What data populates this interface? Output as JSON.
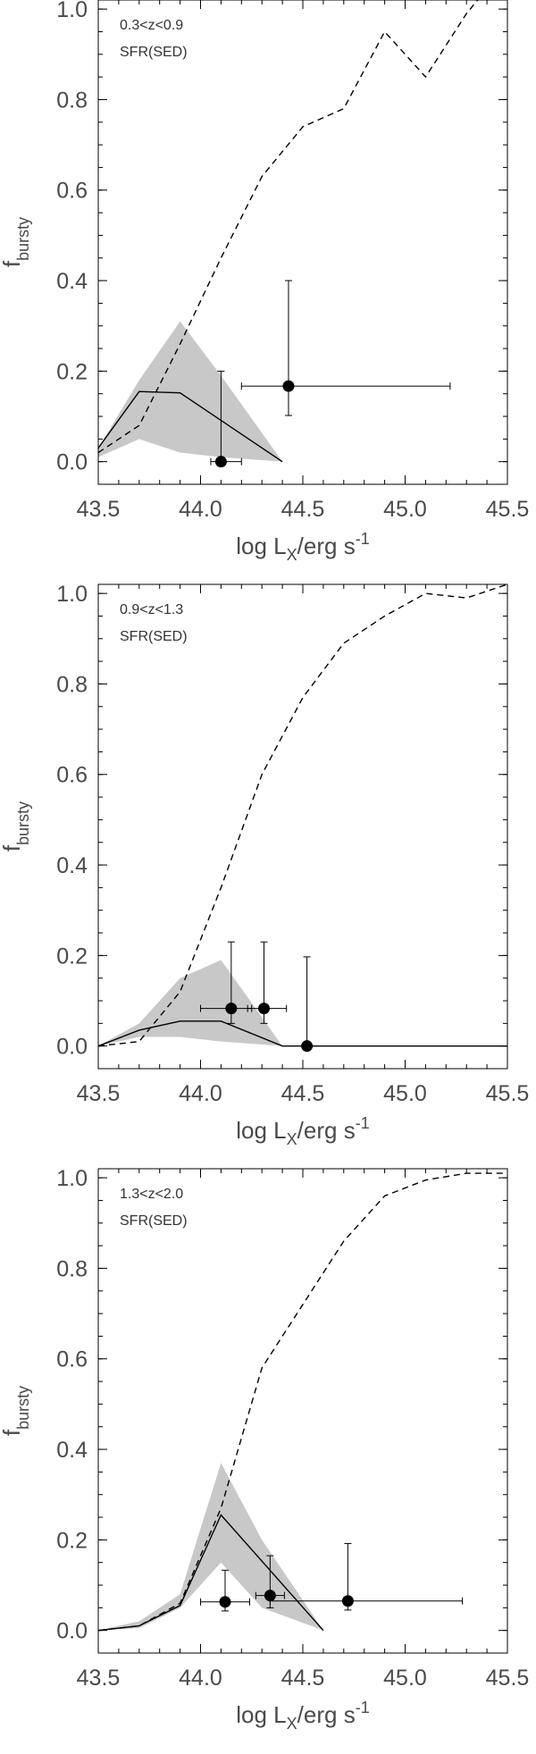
{
  "chart_data": [
    {
      "type": "line",
      "panel": "top",
      "annotations": [
        "0.3<z<0.9",
        "SFR(SED)"
      ],
      "xlabel": {
        "base": "log L",
        "sub": "X",
        "mid": "/erg s",
        "sup": "-1"
      },
      "ylabel": {
        "base": "f",
        "sub": "bursty"
      },
      "xlim": [
        43.5,
        45.5
      ],
      "ylim": [
        -0.05,
        1.02
      ],
      "xticks": [
        43.5,
        44.0,
        44.5,
        45.0,
        45.5
      ],
      "xtick_labels": [
        "43.5",
        "44.0",
        "44.5",
        "45.0",
        "45.5"
      ],
      "yticks": [
        0.0,
        0.2,
        0.4,
        0.6,
        0.8,
        1.0
      ],
      "ytick_labels": [
        "0.0",
        "0.2",
        "0.4",
        "0.6",
        "0.8",
        "1.0"
      ],
      "band": {
        "x": [
          43.5,
          43.7,
          43.9,
          44.1,
          44.4
        ],
        "upper": [
          0.03,
          0.18,
          0.31,
          0.19,
          0.0
        ],
        "lower": [
          0.01,
          0.05,
          0.02,
          0.01,
          0.0
        ]
      },
      "model_line": {
        "x": [
          43.5,
          43.7,
          43.9,
          44.4
        ],
        "y": [
          0.03,
          0.155,
          0.152,
          0.0
        ]
      },
      "dashed_line": {
        "x": [
          43.5,
          43.7,
          43.9,
          44.1,
          44.3,
          44.5,
          44.7,
          44.9,
          45.1,
          45.3,
          45.5
        ],
        "y": [
          0.02,
          0.08,
          0.26,
          0.45,
          0.63,
          0.74,
          0.78,
          0.95,
          0.85,
          0.99,
          1.1
        ]
      },
      "points": [
        {
          "x": 44.1,
          "y": 0.0,
          "xerr_lo": 0.05,
          "xerr_hi": 0.1,
          "yerr_lo": 0.0,
          "yerr_hi": 0.2
        },
        {
          "x": 44.43,
          "y": 0.167,
          "xerr_lo": 0.23,
          "xerr_hi": 0.79,
          "yerr_lo": 0.065,
          "yerr_hi": 0.233
        }
      ]
    },
    {
      "type": "line",
      "panel": "middle",
      "annotations": [
        "0.9<z<1.3",
        "SFR(SED)"
      ],
      "xlabel": {
        "base": "log L",
        "sub": "X",
        "mid": "/erg s",
        "sup": "-1"
      },
      "ylabel": {
        "base": "f",
        "sub": "bursty"
      },
      "xlim": [
        43.5,
        45.5
      ],
      "ylim": [
        -0.05,
        1.02
      ],
      "xticks": [
        43.5,
        44.0,
        44.5,
        45.0,
        45.5
      ],
      "xtick_labels": [
        "43.5",
        "44.0",
        "44.5",
        "45.0",
        "45.5"
      ],
      "yticks": [
        0.0,
        0.2,
        0.4,
        0.6,
        0.8,
        1.0
      ],
      "ytick_labels": [
        "0.0",
        "0.2",
        "0.4",
        "0.6",
        "0.8",
        "1.0"
      ],
      "band": {
        "x": [
          43.5,
          43.7,
          43.9,
          44.1,
          44.4
        ],
        "upper": [
          0.0,
          0.05,
          0.15,
          0.19,
          0.0
        ],
        "lower": [
          0.0,
          0.02,
          0.02,
          0.01,
          0.0
        ]
      },
      "model_line": {
        "x": [
          43.5,
          43.7,
          43.9,
          44.1,
          44.4,
          45.5
        ],
        "y": [
          0.0,
          0.035,
          0.055,
          0.055,
          0.0,
          0.0
        ]
      },
      "dashed_line": {
        "x": [
          43.5,
          43.7,
          43.9,
          44.1,
          44.3,
          44.5,
          44.7,
          44.9,
          45.1,
          45.3,
          45.5
        ],
        "y": [
          0.0,
          0.01,
          0.12,
          0.35,
          0.6,
          0.77,
          0.89,
          0.95,
          1.0,
          0.99,
          1.02
        ]
      },
      "points": [
        {
          "x": 44.15,
          "y": 0.083,
          "xerr_lo": 0.15,
          "xerr_hi": 0.1,
          "yerr_lo": 0.033,
          "yerr_hi": 0.147
        },
        {
          "x": 44.31,
          "y": 0.083,
          "xerr_lo": 0.08,
          "xerr_hi": 0.11,
          "yerr_lo": 0.033,
          "yerr_hi": 0.147
        },
        {
          "x": 44.52,
          "y": 0.0,
          "xerr_lo": 0.0,
          "xerr_hi": 0.0,
          "yerr_lo": 0.0,
          "yerr_hi": 0.197
        }
      ]
    },
    {
      "type": "line",
      "panel": "bottom",
      "annotations": [
        "1.3<z<2.0",
        "SFR(SED)"
      ],
      "xlabel": {
        "base": "log L",
        "sub": "X",
        "mid": "/erg s",
        "sup": "-1"
      },
      "ylabel": {
        "base": "f",
        "sub": "bursty"
      },
      "xlim": [
        43.5,
        45.5
      ],
      "ylim": [
        -0.05,
        1.02
      ],
      "xticks": [
        43.5,
        44.0,
        44.5,
        45.0,
        45.5
      ],
      "xtick_labels": [
        "43.5",
        "44.0",
        "44.5",
        "45.0",
        "45.5"
      ],
      "yticks": [
        0.0,
        0.2,
        0.4,
        0.6,
        0.8,
        1.0
      ],
      "ytick_labels": [
        "0.0",
        "0.2",
        "0.4",
        "0.6",
        "0.8",
        "1.0"
      ],
      "band": {
        "x": [
          43.5,
          43.7,
          43.9,
          44.1,
          44.3,
          44.6
        ],
        "upper": [
          0.0,
          0.02,
          0.08,
          0.37,
          0.2,
          0.0
        ],
        "lower": [
          0.0,
          0.005,
          0.05,
          0.15,
          0.05,
          0.0
        ]
      },
      "model_line": {
        "x": [
          43.5,
          43.7,
          43.9,
          44.1,
          44.6
        ],
        "y": [
          0.0,
          0.01,
          0.055,
          0.255,
          0.0
        ]
      },
      "dashed_line": {
        "x": [
          43.5,
          43.7,
          43.9,
          44.1,
          44.3,
          44.5,
          44.7,
          44.9,
          45.1,
          45.3,
          45.5
        ],
        "y": [
          0.0,
          0.01,
          0.06,
          0.27,
          0.58,
          0.72,
          0.86,
          0.96,
          0.995,
          1.01,
          1.01
        ]
      },
      "points": [
        {
          "x": 44.12,
          "y": 0.063,
          "xerr_lo": 0.12,
          "xerr_hi": 0.12,
          "yerr_lo": 0.02,
          "yerr_hi": 0.07
        },
        {
          "x": 44.34,
          "y": 0.077,
          "xerr_lo": 0.07,
          "xerr_hi": 0.07,
          "yerr_lo": 0.027,
          "yerr_hi": 0.088
        },
        {
          "x": 44.72,
          "y": 0.065,
          "xerr_lo": 0.38,
          "xerr_hi": 0.56,
          "yerr_lo": 0.02,
          "yerr_hi": 0.127
        }
      ]
    }
  ]
}
